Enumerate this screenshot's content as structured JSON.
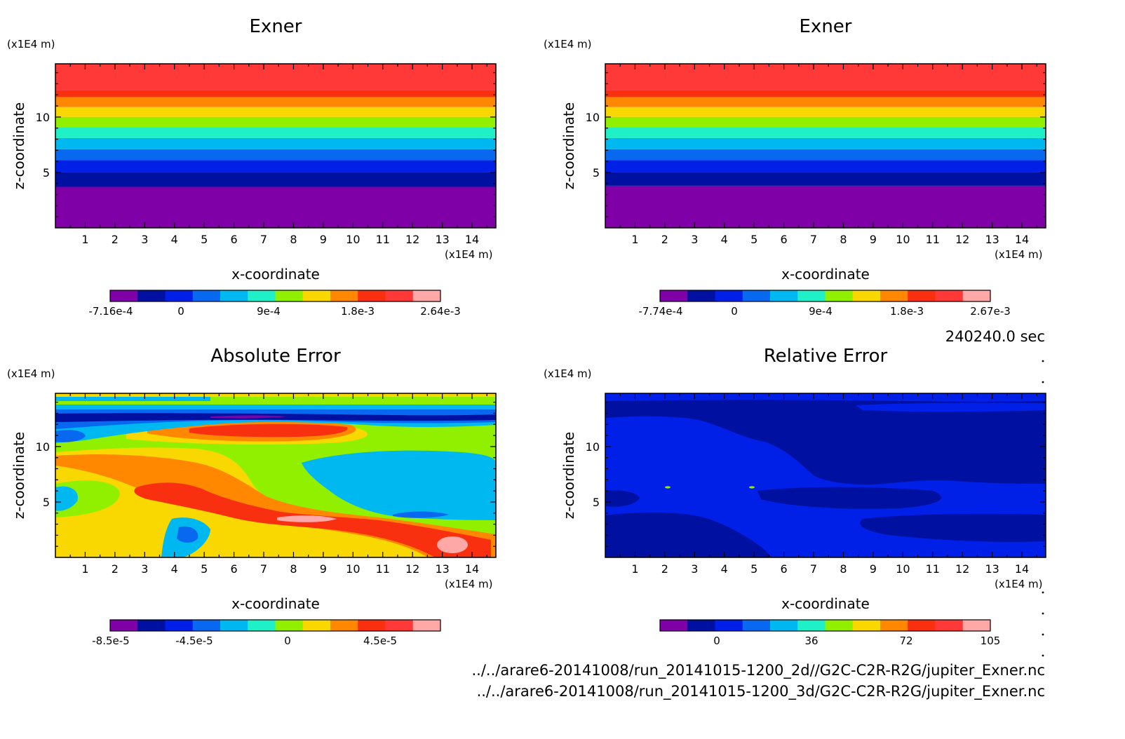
{
  "time_label": "240240.0 sec",
  "file_paths": [
    "../../arare6-20141008/run_20141015-1200_2d//G2C-C2R-R2G/jupiter_Exner.nc",
    "../../arare6-20141008/run_20141015-1200_3d/G2C-C2R-R2G/jupiter_Exner.nc"
  ],
  "palette": [
    "#8000a8",
    "#0010a0",
    "#0020e8",
    "#0868f0",
    "#00b8f0",
    "#20f0c8",
    "#90f000",
    "#f8d800",
    "#ff8800",
    "#f83010",
    "#ff3838",
    "#ffa8a8"
  ],
  "chart_data": [
    {
      "type": "heatmap",
      "title": "Exner",
      "xlabel": "x-coordinate",
      "ylabel": "z-coordinate",
      "x_unit": "(x1E4 m)",
      "y_unit": "(x1E4 m)",
      "xlim": [
        0,
        14.8
      ],
      "ylim": [
        0,
        14.8
      ],
      "x_ticks": [
        "1",
        "2",
        "3",
        "4",
        "5",
        "6",
        "7",
        "8",
        "9",
        "10",
        "11",
        "12",
        "13",
        "14"
      ],
      "y_ticks": [
        "5",
        "10"
      ],
      "colorbar_labels": [
        "-7.16e-4",
        "0",
        "9e-4",
        "1.8e-3",
        "2.64e-3"
      ],
      "levels_z": [
        0,
        3.7,
        5.0,
        6.1,
        7.1,
        8.1,
        9.1,
        10.0,
        10.9,
        11.8,
        12.4,
        14.8
      ]
    },
    {
      "type": "heatmap",
      "title": "Exner",
      "xlabel": "x-coordinate",
      "ylabel": "z-coordinate",
      "x_unit": "(x1E4 m)",
      "y_unit": "(x1E4 m)",
      "xlim": [
        0,
        14.8
      ],
      "ylim": [
        0,
        14.8
      ],
      "x_ticks": [
        "1",
        "2",
        "3",
        "4",
        "5",
        "6",
        "7",
        "8",
        "9",
        "10",
        "11",
        "12",
        "13",
        "14"
      ],
      "y_ticks": [
        "5",
        "10"
      ],
      "colorbar_labels": [
        "-7.74e-4",
        "0",
        "9e-4",
        "1.8e-3",
        "2.67e-3"
      ],
      "levels_z": [
        0,
        3.8,
        5.0,
        6.1,
        7.1,
        8.1,
        9.1,
        10.0,
        10.9,
        11.8,
        12.4,
        14.8
      ]
    },
    {
      "type": "heatmap",
      "title": "Absolute Error",
      "xlabel": "x-coordinate",
      "ylabel": "z-coordinate",
      "x_unit": "(x1E4 m)",
      "y_unit": "(x1E4 m)",
      "xlim": [
        0,
        14.8
      ],
      "ylim": [
        0,
        14.8
      ],
      "x_ticks": [
        "1",
        "2",
        "3",
        "4",
        "5",
        "6",
        "7",
        "8",
        "9",
        "10",
        "11",
        "12",
        "13",
        "14"
      ],
      "y_ticks": [
        "5",
        "10"
      ],
      "colorbar_labels": [
        "-8.5e-5",
        "-4.5e-5",
        "0",
        "4.5e-5"
      ],
      "contour_range": [
        -8.5e-05,
        6.5e-05
      ]
    },
    {
      "type": "heatmap",
      "title": "Relative Error",
      "xlabel": "x-coordinate",
      "ylabel": "z-coordinate",
      "x_unit": "(x1E4 m)",
      "y_unit": "(x1E4 m)",
      "xlim": [
        0,
        14.8
      ],
      "ylim": [
        0,
        14.8
      ],
      "x_ticks": [
        "1",
        "2",
        "3",
        "4",
        "5",
        "6",
        "7",
        "8",
        "9",
        "10",
        "11",
        "12",
        "13",
        "14"
      ],
      "y_ticks": [
        "5",
        "10"
      ],
      "colorbar_labels": [
        "0",
        "36",
        "72",
        "105"
      ],
      "contour_range": [
        -12,
        105
      ]
    }
  ]
}
